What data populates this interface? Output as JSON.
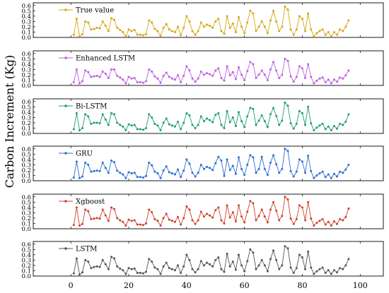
{
  "chart_data": {
    "type": "line",
    "ylabel": "Carbon Increment (Kg)",
    "xlim": [
      -13,
      108
    ],
    "x_ticks": [
      "0",
      "20",
      "40",
      "60",
      "80",
      "100"
    ],
    "ylim": [
      0.0,
      0.65
    ],
    "y_ticks": [
      "0.0",
      "0.1",
      "0.2",
      "0.3",
      "0.4",
      "0.5",
      "0.6"
    ],
    "x": [
      1,
      2,
      3,
      4,
      5,
      6,
      7,
      8,
      9,
      10,
      11,
      12,
      13,
      14,
      15,
      16,
      17,
      18,
      19,
      20,
      21,
      22,
      23,
      24,
      25,
      26,
      27,
      28,
      29,
      30,
      31,
      32,
      33,
      34,
      35,
      36,
      37,
      38,
      39,
      40,
      41,
      42,
      43,
      44,
      45,
      46,
      47,
      48,
      49,
      50,
      51,
      52,
      53,
      54,
      55,
      56,
      57,
      58,
      59,
      60,
      61,
      62,
      63,
      64,
      65,
      66,
      67,
      68,
      69,
      70,
      71,
      72,
      73,
      74,
      75,
      76,
      77,
      78,
      79,
      80,
      81,
      82,
      83,
      84,
      85,
      86,
      87,
      88,
      89,
      90,
      91,
      92,
      93,
      94,
      95,
      96
    ],
    "series": [
      {
        "name": "True value",
        "color": "#d4a814",
        "values": [
          0.05,
          0.35,
          0.02,
          0.06,
          0.3,
          0.28,
          0.15,
          0.16,
          0.18,
          0.17,
          0.3,
          0.22,
          0.12,
          0.36,
          0.33,
          0.18,
          0.14,
          0.1,
          0.02,
          0.15,
          0.12,
          0.14,
          0.05,
          0.05,
          0.04,
          0.06,
          0.32,
          0.28,
          0.16,
          0.12,
          0.03,
          0.18,
          0.25,
          0.15,
          0.12,
          0.1,
          0.2,
          0.04,
          0.18,
          0.4,
          0.3,
          0.12,
          0.05,
          0.12,
          0.28,
          0.2,
          0.24,
          0.22,
          0.18,
          0.3,
          0.35,
          0.12,
          0.07,
          0.4,
          0.18,
          0.26,
          0.1,
          0.38,
          0.2,
          0.08,
          0.28,
          0.5,
          0.45,
          0.12,
          0.2,
          0.3,
          0.2,
          0.08,
          0.32,
          0.5,
          0.3,
          0.12,
          0.2,
          0.58,
          0.52,
          0.15,
          0.05,
          0.15,
          0.4,
          0.35,
          0.12,
          0.45,
          0.15,
          0.02,
          0.08,
          0.12,
          0.15,
          0.05,
          0.1,
          0.02,
          0.1,
          0.05,
          0.15,
          0.12,
          0.2,
          0.32
        ]
      },
      {
        "name": "Enhanced LSTM",
        "color": "#bf5fe0",
        "values": [
          0.06,
          0.3,
          0.04,
          0.08,
          0.28,
          0.25,
          0.16,
          0.17,
          0.18,
          0.16,
          0.26,
          0.22,
          0.14,
          0.3,
          0.3,
          0.18,
          0.15,
          0.11,
          0.04,
          0.16,
          0.13,
          0.14,
          0.06,
          0.06,
          0.05,
          0.08,
          0.3,
          0.26,
          0.17,
          0.13,
          0.05,
          0.18,
          0.24,
          0.16,
          0.13,
          0.11,
          0.19,
          0.06,
          0.18,
          0.36,
          0.28,
          0.13,
          0.07,
          0.13,
          0.26,
          0.2,
          0.23,
          0.21,
          0.18,
          0.28,
          0.32,
          0.14,
          0.09,
          0.36,
          0.19,
          0.25,
          0.12,
          0.34,
          0.2,
          0.1,
          0.27,
          0.44,
          0.4,
          0.14,
          0.2,
          0.28,
          0.2,
          0.1,
          0.3,
          0.44,
          0.28,
          0.14,
          0.2,
          0.5,
          0.46,
          0.17,
          0.07,
          0.16,
          0.36,
          0.32,
          0.14,
          0.4,
          0.16,
          0.04,
          0.09,
          0.13,
          0.15,
          0.06,
          0.11,
          0.04,
          0.11,
          0.07,
          0.15,
          0.13,
          0.19,
          0.28
        ]
      },
      {
        "name": "Bi-LSTM",
        "color": "#1f9e6f",
        "values": [
          0.08,
          0.38,
          0.06,
          0.1,
          0.36,
          0.32,
          0.18,
          0.2,
          0.2,
          0.19,
          0.36,
          0.26,
          0.16,
          0.38,
          0.36,
          0.2,
          0.16,
          0.13,
          0.06,
          0.17,
          0.15,
          0.16,
          0.08,
          0.08,
          0.07,
          0.1,
          0.36,
          0.3,
          0.18,
          0.15,
          0.06,
          0.2,
          0.28,
          0.17,
          0.15,
          0.13,
          0.22,
          0.08,
          0.2,
          0.38,
          0.34,
          0.16,
          0.1,
          0.16,
          0.32,
          0.23,
          0.28,
          0.25,
          0.21,
          0.35,
          0.38,
          0.16,
          0.1,
          0.42,
          0.21,
          0.3,
          0.14,
          0.4,
          0.23,
          0.12,
          0.32,
          0.48,
          0.46,
          0.16,
          0.24,
          0.34,
          0.23,
          0.12,
          0.36,
          0.48,
          0.33,
          0.16,
          0.24,
          0.58,
          0.52,
          0.19,
          0.09,
          0.18,
          0.42,
          0.38,
          0.16,
          0.5,
          0.19,
          0.06,
          0.11,
          0.15,
          0.18,
          0.08,
          0.13,
          0.06,
          0.14,
          0.09,
          0.18,
          0.16,
          0.22,
          0.36
        ]
      },
      {
        "name": "GRU",
        "color": "#2a6fd4",
        "values": [
          0.06,
          0.36,
          0.05,
          0.08,
          0.34,
          0.3,
          0.17,
          0.18,
          0.19,
          0.18,
          0.34,
          0.24,
          0.15,
          0.38,
          0.35,
          0.19,
          0.15,
          0.12,
          0.05,
          0.16,
          0.14,
          0.15,
          0.07,
          0.07,
          0.06,
          0.09,
          0.34,
          0.29,
          0.17,
          0.14,
          0.05,
          0.19,
          0.27,
          0.16,
          0.14,
          0.12,
          0.21,
          0.07,
          0.19,
          0.4,
          0.32,
          0.15,
          0.08,
          0.15,
          0.3,
          0.22,
          0.26,
          0.24,
          0.2,
          0.33,
          0.45,
          0.38,
          0.09,
          0.4,
          0.2,
          0.28,
          0.13,
          0.44,
          0.22,
          0.11,
          0.3,
          0.48,
          0.44,
          0.15,
          0.22,
          0.45,
          0.22,
          0.11,
          0.34,
          0.48,
          0.31,
          0.15,
          0.22,
          0.6,
          0.56,
          0.18,
          0.08,
          0.17,
          0.4,
          0.36,
          0.15,
          0.47,
          0.18,
          0.05,
          0.1,
          0.14,
          0.17,
          0.07,
          0.12,
          0.05,
          0.13,
          0.08,
          0.17,
          0.15,
          0.21,
          0.3
        ]
      },
      {
        "name": "Xgboost",
        "color": "#d0402a",
        "values": [
          0.07,
          0.4,
          0.06,
          0.09,
          0.36,
          0.33,
          0.18,
          0.19,
          0.2,
          0.19,
          0.36,
          0.25,
          0.15,
          0.4,
          0.37,
          0.2,
          0.16,
          0.13,
          0.06,
          0.17,
          0.15,
          0.16,
          0.08,
          0.08,
          0.07,
          0.1,
          0.36,
          0.31,
          0.18,
          0.15,
          0.06,
          0.2,
          0.28,
          0.17,
          0.15,
          0.13,
          0.22,
          0.08,
          0.2,
          0.42,
          0.36,
          0.16,
          0.09,
          0.16,
          0.32,
          0.23,
          0.28,
          0.25,
          0.21,
          0.35,
          0.4,
          0.16,
          0.1,
          0.44,
          0.21,
          0.31,
          0.14,
          0.44,
          0.23,
          0.12,
          0.32,
          0.52,
          0.48,
          0.16,
          0.24,
          0.36,
          0.23,
          0.12,
          0.36,
          0.5,
          0.34,
          0.16,
          0.24,
          0.6,
          0.55,
          0.19,
          0.09,
          0.18,
          0.44,
          0.4,
          0.16,
          0.5,
          0.19,
          0.06,
          0.11,
          0.15,
          0.18,
          0.08,
          0.13,
          0.06,
          0.14,
          0.09,
          0.18,
          0.16,
          0.22,
          0.38
        ]
      },
      {
        "name": "LSTM",
        "color": "#555555",
        "values": [
          0.05,
          0.33,
          0.03,
          0.07,
          0.3,
          0.27,
          0.15,
          0.17,
          0.18,
          0.17,
          0.3,
          0.22,
          0.13,
          0.36,
          0.33,
          0.18,
          0.14,
          0.11,
          0.04,
          0.15,
          0.13,
          0.14,
          0.06,
          0.06,
          0.05,
          0.08,
          0.32,
          0.27,
          0.16,
          0.13,
          0.04,
          0.18,
          0.25,
          0.15,
          0.13,
          0.11,
          0.2,
          0.06,
          0.18,
          0.4,
          0.3,
          0.13,
          0.07,
          0.13,
          0.28,
          0.2,
          0.25,
          0.22,
          0.18,
          0.3,
          0.35,
          0.13,
          0.08,
          0.42,
          0.18,
          0.27,
          0.12,
          0.4,
          0.2,
          0.09,
          0.28,
          0.5,
          0.44,
          0.13,
          0.2,
          0.3,
          0.2,
          0.09,
          0.32,
          0.48,
          0.3,
          0.13,
          0.2,
          0.56,
          0.52,
          0.16,
          0.06,
          0.15,
          0.4,
          0.35,
          0.13,
          0.46,
          0.16,
          0.04,
          0.09,
          0.13,
          0.16,
          0.06,
          0.11,
          0.04,
          0.11,
          0.07,
          0.15,
          0.13,
          0.2,
          0.32
        ]
      }
    ]
  }
}
